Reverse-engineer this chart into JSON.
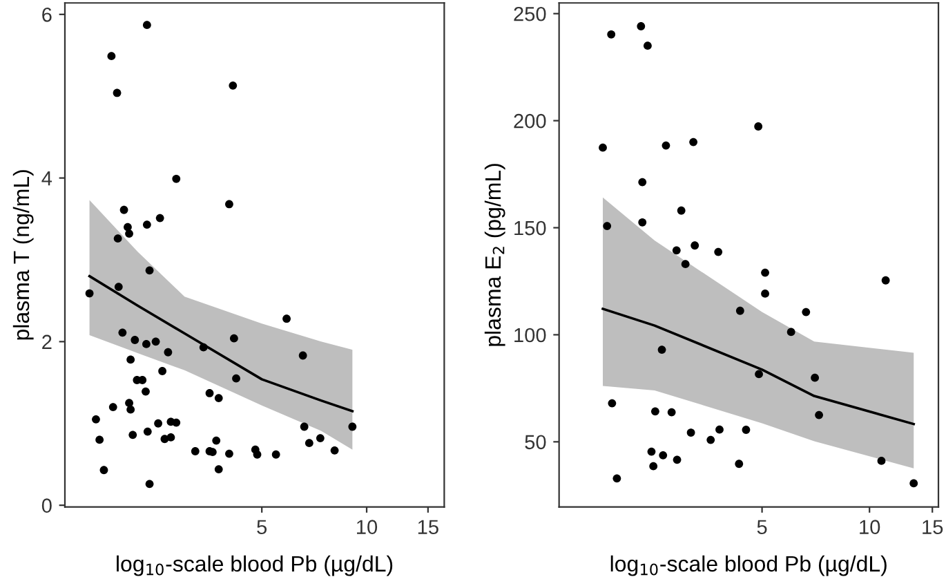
{
  "chart_data": [
    {
      "type": "scatter",
      "xlabel": "log$_{10}$-scale blood Pb (µg/dL)",
      "ylabel": "plasma T (ng/mL)",
      "log": "x",
      "xlim": [
        1.36,
        16.7
      ],
      "xticks": [
        5,
        10,
        15
      ],
      "ylim": [
        -0.02,
        6.14
      ],
      "yticks": [
        0,
        2,
        4,
        6
      ],
      "series": [
        {
          "type": "scatter",
          "marker": "circle",
          "color": "#000000",
          "x": [
            2.34,
            1.85,
            1.92,
            4.13,
            2.84,
            4.03,
            2.01,
            2.06,
            2.08,
            2.34,
            2.55,
            1.93,
            2.38,
            1.94,
            1.6,
            1.99,
            2.16,
            2.33,
            2.48,
            2.69,
            2.1,
            2.59,
            2.19,
            2.27,
            2.32,
            2.08,
            2.1,
            1.87,
            1.67,
            1.71,
            1.76,
            2.13,
            2.35,
            2.52,
            2.74,
            2.84,
            2.63,
            2.74,
            2.38,
            3.22,
            3.4,
            3.54,
            3.76,
            4.16,
            4.22,
            3.54,
            3.61,
            3.7,
            3.76,
            4.03,
            4.79,
            4.85,
            5.49,
            5.89,
            6.56,
            6.62,
            6.84,
            7.36,
            8.09,
            9.1
          ],
          "values": [
            5.87,
            5.49,
            5.04,
            5.13,
            3.99,
            3.68,
            3.61,
            3.4,
            3.32,
            3.43,
            3.51,
            3.26,
            2.87,
            2.67,
            2.59,
            2.11,
            2.02,
            1.97,
            2.0,
            1.87,
            1.78,
            1.64,
            1.53,
            1.53,
            1.39,
            1.25,
            1.17,
            1.2,
            1.05,
            0.8,
            0.43,
            0.86,
            0.9,
            1.0,
            1.02,
            1.01,
            0.81,
            0.83,
            0.26,
            0.66,
            1.93,
            1.37,
            1.31,
            2.04,
            1.55,
            0.66,
            0.65,
            0.79,
            0.44,
            0.63,
            0.68,
            0.62,
            0.62,
            2.28,
            1.83,
            0.96,
            0.76,
            0.82,
            0.67,
            0.96
          ]
        },
        {
          "type": "line",
          "marker": "none",
          "color": "#000000",
          "x": [
            1.6,
            2.2,
            3.0,
            5.0,
            7.4,
            9.1
          ],
          "values": [
            2.8,
            2.44,
            2.1,
            1.54,
            1.28,
            1.15
          ],
          "lower": [
            2.08,
            1.86,
            1.65,
            1.22,
            0.91,
            0.68
          ],
          "upper": [
            3.73,
            3.1,
            2.55,
            2.22,
            2.0,
            1.9
          ]
        }
      ]
    },
    {
      "type": "scatter",
      "xlabel": "log$_{10}$-scale blood Pb (µg/dL)",
      "ylabel": "plasma E$_{2}$ (pg/mL)",
      "log": "x",
      "xlim": [
        1.35,
        15.6
      ],
      "xticks": [
        5,
        10,
        15
      ],
      "ylim": [
        19.6,
        255
      ],
      "yticks": [
        50,
        100,
        150,
        200,
        250
      ],
      "series": [
        {
          "type": "scatter",
          "marker": "circle",
          "color": "#000000",
          "x": [
            1.89,
            2.29,
            2.39,
            1.79,
            2.69,
            3.21,
            4.88,
            2.31,
            1.84,
            2.31,
            2.97,
            2.88,
            3.24,
            3.05,
            3.77,
            5.1,
            5.1,
            11.1,
            4.34,
            6.64,
            6.03,
            2.62,
            4.9,
            7.03,
            1.9,
            2.51,
            2.79,
            7.22,
            3.16,
            3.8,
            4.51,
            3.59,
            2.45,
            2.64,
            2.89,
            2.48,
            4.31,
            1.96,
            10.8,
            13.3
          ],
          "values": [
            240.3,
            244.1,
            235.0,
            187.4,
            188.4,
            190.0,
            197.3,
            171.3,
            150.8,
            152.5,
            158.0,
            139.4,
            141.7,
            133.0,
            138.7,
            129.0,
            119.2,
            125.4,
            111.2,
            110.6,
            101.3,
            93.0,
            81.6,
            79.9,
            68.0,
            64.2,
            63.8,
            62.5,
            54.3,
            55.7,
            55.6,
            50.9,
            45.4,
            43.7,
            41.6,
            38.6,
            39.7,
            32.9,
            41.1,
            30.6
          ]
        },
        {
          "type": "line",
          "marker": "none",
          "color": "#000000",
          "x": [
            1.79,
            2.5,
            5.0,
            7.0,
            13.3
          ],
          "values": [
            112.1,
            104.3,
            83.7,
            71.4,
            58.3
          ],
          "lower": [
            76.1,
            74.0,
            58.7,
            50.3,
            37.6
          ],
          "upper": [
            164.1,
            144.0,
            110.6,
            96.8,
            91.6
          ]
        }
      ]
    }
  ]
}
